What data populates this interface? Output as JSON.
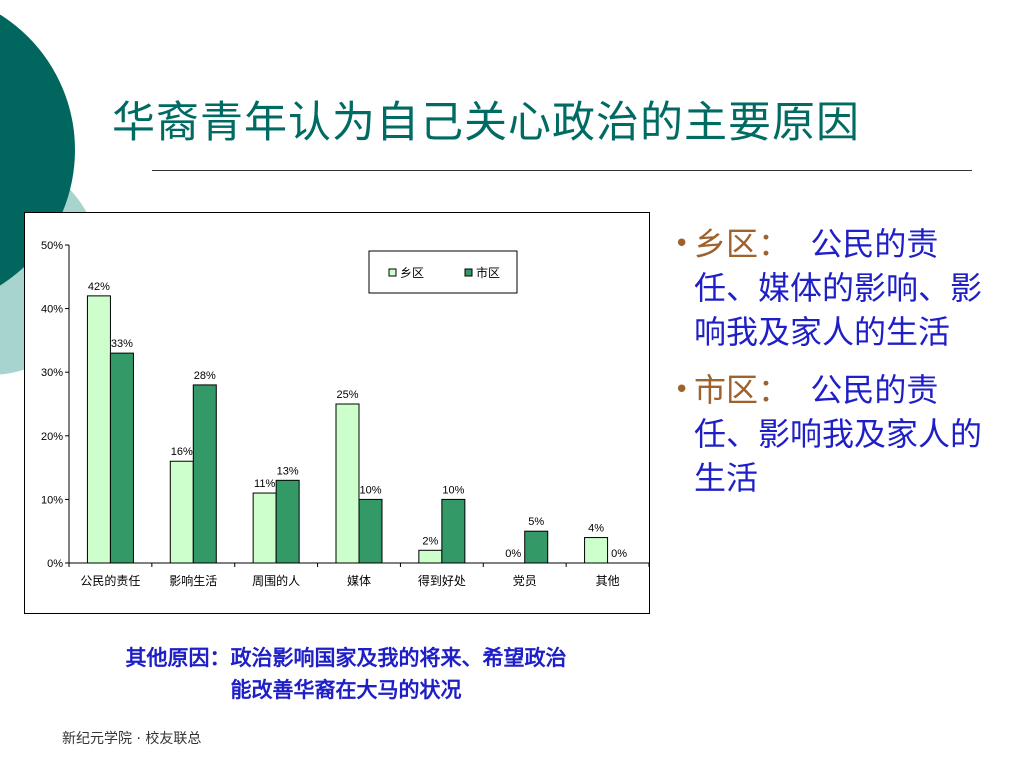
{
  "title": "华裔青年认为自己关心政治的主要原因",
  "chart_data": {
    "type": "bar",
    "categories": [
      "公民的责任",
      "影响生活",
      "周围的人",
      "媒体",
      "得到好处",
      "党员",
      "其他"
    ],
    "series": [
      {
        "name": "乡区",
        "values": [
          42,
          16,
          11,
          25,
          2,
          0,
          4
        ],
        "labels": [
          "42%",
          "16%",
          "11%",
          "25%",
          "2%",
          "0%",
          "4%"
        ],
        "color": "#ccffcc"
      },
      {
        "name": "市区",
        "values": [
          33,
          28,
          13,
          10,
          10,
          5,
          0
        ],
        "labels": [
          "33%",
          "28%",
          "13%",
          "10%",
          "10%",
          "5%",
          "0%"
        ],
        "color": "#339966"
      }
    ],
    "ylim": [
      0,
      50
    ],
    "yticks": [
      "0%",
      "10%",
      "20%",
      "30%",
      "40%",
      "50%"
    ],
    "legend": "top-right",
    "grid": false
  },
  "bullets": [
    {
      "head": "乡区",
      "sep": "：",
      "body": "公民的责任、媒体的影响、影响我及家人的生活"
    },
    {
      "head": "市区",
      "sep": "：",
      "body": "公民的责任、影响我及家人的生活"
    }
  ],
  "other_reasons": {
    "line1": "其他原因：政治影响国家及我的将来、希望政治",
    "line2": "能改善华裔在大马的状况"
  },
  "footer": "新纪元学院 · 校友联总",
  "colors": {
    "title": "#006b63",
    "text_blue": "#1f1fc8",
    "bullet_head": "#a0622d",
    "deco_dark": "#00665e",
    "deco_light": "#a8d4d0"
  }
}
